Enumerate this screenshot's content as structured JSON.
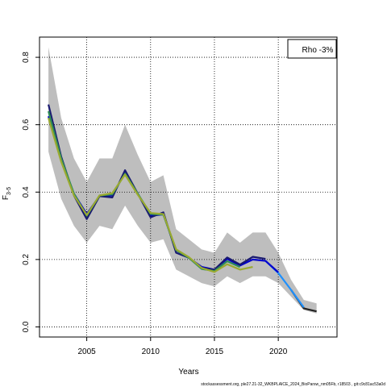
{
  "chart_data": {
    "type": "line",
    "xlabel": "Years",
    "ylabel": "F",
    "ylabel_subscript": "3-5",
    "xlim": [
      2001.3,
      2024.6
    ],
    "ylim": [
      -0.03,
      0.86
    ],
    "x_ticks": [
      2005,
      2010,
      2015,
      2020
    ],
    "y_ticks": [
      0.0,
      0.2,
      0.4,
      0.6,
      0.8
    ],
    "grid": true,
    "legend_text": "Rho -3%",
    "legend_position": "top-right",
    "footnote": "stockassessment.org, ple27.21-32_WKBPLAICE_2024_BioParsw_nm05Fb, r18503 , git:c9c81ac53a0d",
    "confidence_band": {
      "color": "#bebebe",
      "x": [
        2002,
        2003,
        2004,
        2005,
        2006,
        2007,
        2008,
        2009,
        2010,
        2011,
        2012,
        2013,
        2014,
        2015,
        2016,
        2017,
        2018,
        2019,
        2020,
        2021,
        2022,
        2023
      ],
      "upper": [
        0.83,
        0.62,
        0.5,
        0.43,
        0.5,
        0.5,
        0.6,
        0.51,
        0.43,
        0.45,
        0.29,
        0.26,
        0.23,
        0.22,
        0.28,
        0.25,
        0.28,
        0.28,
        0.22,
        0.14,
        0.08,
        0.07
      ],
      "lower": [
        0.52,
        0.38,
        0.3,
        0.25,
        0.3,
        0.29,
        0.36,
        0.3,
        0.25,
        0.26,
        0.17,
        0.15,
        0.13,
        0.12,
        0.15,
        0.13,
        0.15,
        0.15,
        0.13,
        0.09,
        0.05,
        0.04
      ]
    },
    "series": [
      {
        "color": "#222222",
        "x": [
          2021,
          2022,
          2023
        ],
        "values": [
          0.11,
          0.055,
          0.046
        ]
      },
      {
        "color": "#1e90ff",
        "x": [
          2019,
          2020,
          2021,
          2022
        ],
        "values": [
          0.196,
          0.16,
          0.11,
          0.058
        ]
      },
      {
        "color": "#0000cd",
        "x": [
          2002,
          2003,
          2004,
          2005,
          2006,
          2007,
          2008,
          2009,
          2010,
          2011,
          2012,
          2013,
          2014,
          2015,
          2016,
          2017,
          2018,
          2019,
          2020
        ],
        "values": [
          0.625,
          0.495,
          0.395,
          0.335,
          0.388,
          0.39,
          0.458,
          0.395,
          0.33,
          0.334,
          0.228,
          0.205,
          0.178,
          0.17,
          0.202,
          0.182,
          0.2,
          0.196,
          0.162
        ]
      },
      {
        "color": "#191970",
        "x": [
          2002,
          2003,
          2004,
          2005,
          2006,
          2007,
          2008,
          2009,
          2010,
          2011,
          2012,
          2013,
          2014,
          2015,
          2016,
          2017,
          2018,
          2019
        ],
        "values": [
          0.66,
          0.505,
          0.39,
          0.32,
          0.388,
          0.384,
          0.465,
          0.395,
          0.325,
          0.34,
          0.22,
          0.205,
          0.175,
          0.17,
          0.206,
          0.185,
          0.208,
          0.202
        ]
      },
      {
        "color": "#2e8b57",
        "x": [
          2002,
          2003,
          2004,
          2005,
          2006,
          2007,
          2008,
          2009,
          2010,
          2011,
          2012,
          2013,
          2014,
          2015,
          2016,
          2017
        ],
        "values": [
          0.64,
          0.5,
          0.395,
          0.33,
          0.39,
          0.393,
          0.455,
          0.395,
          0.335,
          0.333,
          0.228,
          0.205,
          0.172,
          0.166,
          0.195,
          0.178
        ]
      },
      {
        "color": "#9aaa30",
        "x": [
          2002,
          2003,
          2004,
          2005,
          2006,
          2007,
          2008,
          2009,
          2010,
          2011,
          2012,
          2013,
          2014,
          2015,
          2016,
          2017,
          2018
        ],
        "values": [
          0.62,
          0.49,
          0.39,
          0.332,
          0.39,
          0.397,
          0.452,
          0.392,
          0.338,
          0.335,
          0.23,
          0.207,
          0.175,
          0.163,
          0.186,
          0.17,
          0.178
        ]
      }
    ]
  }
}
